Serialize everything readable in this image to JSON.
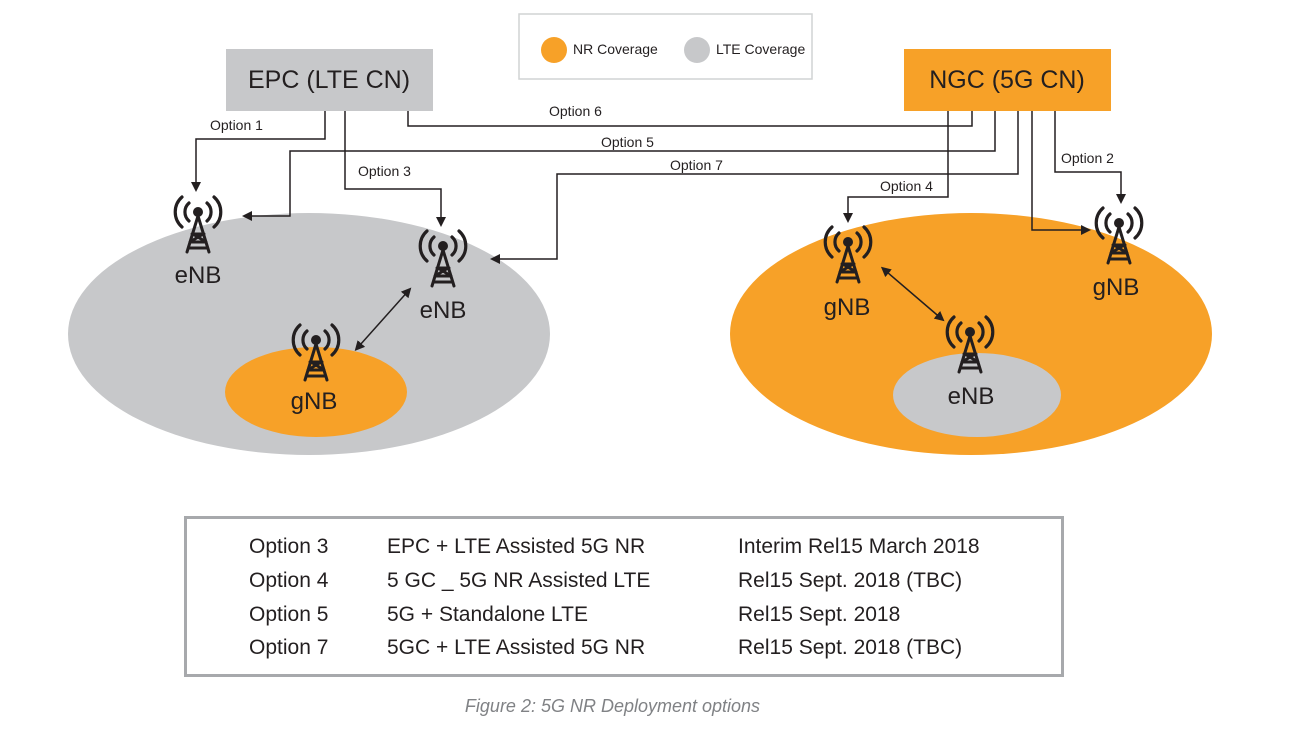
{
  "legend": {
    "nr_label": "NR Coverage",
    "lte_label": "LTE Coverage",
    "nr_color": "#f7a128",
    "lte_color": "#c7c8ca"
  },
  "core": {
    "epc_label": "EPC (LTE CN)",
    "ngc_label": "NGC (5G CN)"
  },
  "options": {
    "o1": "Option 1",
    "o2": "Option 2",
    "o3": "Option 3",
    "o4": "Option 4",
    "o5": "Option 5",
    "o6": "Option 6",
    "o7": "Option 7"
  },
  "nodes": {
    "enb_left": "eNB",
    "enb_mid": "eNB",
    "gnb_left": "gNB",
    "gnb_right1": "gNB",
    "gnb_right2": "gNB",
    "enb_right": "eNB"
  },
  "table": [
    {
      "option": "Option 3",
      "desc": "EPC + LTE Assisted 5G NR",
      "release": "Interim Rel15 March 2018"
    },
    {
      "option": "Option 4",
      "desc": "5 GC _ 5G NR Assisted LTE",
      "release": "Rel15 Sept. 2018 (TBC)"
    },
    {
      "option": "Option 5",
      "desc": "5G + Standalone LTE",
      "release": "Rel15 Sept. 2018"
    },
    {
      "option": "Option 7",
      "desc": "5GC + LTE Assisted 5G NR",
      "release": "Rel15 Sept. 2018 (TBC)"
    }
  ],
  "caption": "Figure 2: 5G NR Deployment options",
  "colors": {
    "orange": "#f7a128",
    "gray": "#c7c8ca",
    "core_gray": "#c7c8ca",
    "line": "#231f20"
  }
}
